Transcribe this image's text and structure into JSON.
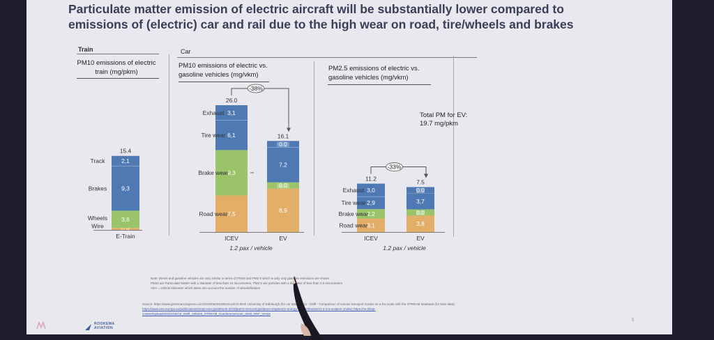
{
  "slide": {
    "title": "Particulate matter emission of electric aircraft will be substantially lower compared to emissions of (electric) car and rail due to the high wear on road, tire/wheels and brakes",
    "sections": {
      "train": "Train",
      "car": "Car"
    },
    "headers": {
      "train": "PM10 emissions of electric train (mg/pkm)",
      "car_pm10": "PM10 emissions of electric vs. gasoline vehicles (mg/vkm)",
      "car_pm25": "PM2.5 emissions of electric vs. gasoline vehicles (mg/vkm)"
    },
    "total_pm_note": "Total PM for EV: 19.7 mg/pkm",
    "notes": [
      "Note: Diesel and gasoline vehicles are very similar in terms of PM10 and PM2.5 which is why only gasoline emissions are shown",
      "PM10 are Particulate Matter with a diameter of less than 10 micrometers, PM2.5 are particles with a diameter of less than 2.5 micrometers",
      "Vkm = vehicle kilometer which takes into account the number of wheels/brakes"
    ],
    "source": "Source: https://www.greencarcongress.com/2016/06/20160618-pm10.html/ University of Edinburgh (for car data); 2011 - Delft - Comparison of various transport modes on a EU scale with the STREAM database (for train data);",
    "source_line2": "https://www.eea.europa.eu/publications/emep-eea-guidebook-2019/part-b-sectoral-guidance-chapters/1-energy/1-a-combustion/1-a-3-a-aviation-1/view; https://ce.nl/wp-",
    "source_line3": "content/uploads/2021/03/CE_Delft_190325_STREAM_Goederenvervoer_2020_DEF_Versie",
    "logo_text": "ROOKEMA AVIATION",
    "page_number": "5"
  },
  "chart_data": [
    {
      "type": "bar",
      "stacked": true,
      "title": "PM10 emissions of electric train (mg/pkm)",
      "categories": [
        "E-Train"
      ],
      "series": [
        {
          "name": "Wire",
          "values": [
            0.4
          ],
          "color": "#e3ae68"
        },
        {
          "name": "Wheels",
          "values": [
            3.6
          ],
          "color": "#9ac36a"
        },
        {
          "name": "Brakes",
          "values": [
            9.3
          ],
          "color": "#4e79b3"
        },
        {
          "name": "Track",
          "values": [
            2.1
          ],
          "color": "#4e79b3"
        }
      ],
      "labels": [
        "0.4",
        "3,6",
        "9,3",
        "2,1"
      ],
      "totals": [
        "15.4"
      ]
    },
    {
      "type": "bar",
      "stacked": true,
      "title": "PM10 emissions of electric vs. gasoline vehicles (mg/vkm)",
      "categories": [
        "ICEV",
        "EV"
      ],
      "series": [
        {
          "name": "Road wear",
          "values": [
            7.5,
            8.9
          ],
          "color": "#e3ae68"
        },
        {
          "name": "Brake wear",
          "values": [
            9.3,
            0.0
          ],
          "color": "#9ac36a"
        },
        {
          "name": "Tire wear",
          "values": [
            6.1,
            7.2
          ],
          "color": "#4e79b3"
        },
        {
          "name": "Exhaust",
          "values": [
            3.1,
            0.0
          ],
          "color": "#4e79b3"
        }
      ],
      "labels": {
        "ICEV": [
          "7,5",
          "9,3",
          "6,1",
          "3,1"
        ],
        "EV": [
          "8,9",
          "0.0",
          "7,2",
          "0.0"
        ]
      },
      "totals": [
        "26.0",
        "16.1"
      ],
      "reduction": "-38%",
      "subtitle": "1.2 pax / vehicle"
    },
    {
      "type": "bar",
      "stacked": true,
      "title": "PM2.5 emissions of electric vs. gasoline vehicles (mg/vkm)",
      "categories": [
        "ICEV",
        "EV"
      ],
      "series": [
        {
          "name": "Road wear",
          "values": [
            3.1,
            3.8
          ],
          "color": "#e3ae68"
        },
        {
          "name": "Brake wear",
          "values": [
            2.2,
            0.0
          ],
          "color": "#9ac36a"
        },
        {
          "name": "Tire wear",
          "values": [
            2.9,
            3.7
          ],
          "color": "#4e79b3"
        },
        {
          "name": "Exhaust",
          "values": [
            3.0,
            0.0
          ],
          "color": "#4e79b3"
        }
      ],
      "labels": {
        "ICEV": [
          "3,1",
          "2,2",
          "2,9",
          "3,0"
        ],
        "EV": [
          "3,8",
          "0.0",
          "3,7",
          "0.0"
        ]
      },
      "totals": [
        "11.2",
        "7.5"
      ],
      "reduction": "-33%",
      "subtitle": "1.2 pax / vehicle"
    }
  ]
}
